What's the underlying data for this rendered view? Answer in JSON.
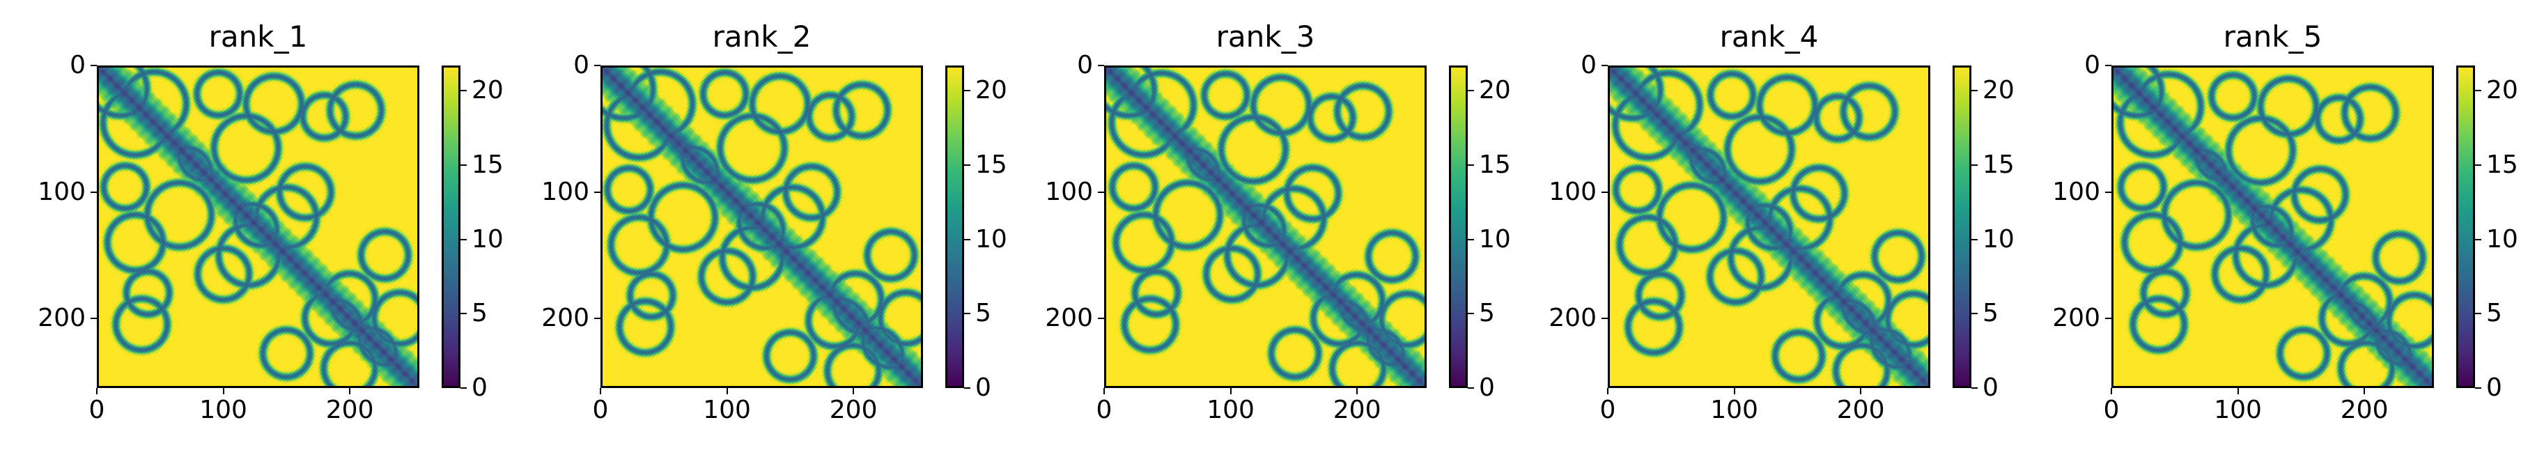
{
  "chart_data": [
    {
      "type": "heatmap",
      "title": "rank_1",
      "xticks": [
        0,
        100,
        200
      ],
      "yticks": [
        0,
        100,
        200
      ],
      "xlim": [
        0,
        255
      ],
      "ylim": [
        0,
        255
      ],
      "colorbar": {
        "ticks": [
          0,
          5,
          10,
          15,
          20
        ],
        "range": [
          0,
          21.7
        ]
      },
      "colormap": "viridis",
      "variant": 0
    },
    {
      "type": "heatmap",
      "title": "rank_2",
      "xticks": [
        0,
        100,
        200
      ],
      "yticks": [
        0,
        100,
        200
      ],
      "xlim": [
        0,
        255
      ],
      "ylim": [
        0,
        255
      ],
      "colorbar": {
        "ticks": [
          0,
          5,
          10,
          15,
          20
        ],
        "range": [
          0,
          21.7
        ]
      },
      "colormap": "viridis",
      "variant": 1
    },
    {
      "type": "heatmap",
      "title": "rank_3",
      "xticks": [
        0,
        100,
        200
      ],
      "yticks": [
        0,
        100,
        200
      ],
      "xlim": [
        0,
        255
      ],
      "ylim": [
        0,
        255
      ],
      "colorbar": {
        "ticks": [
          0,
          5,
          10,
          15,
          20
        ],
        "range": [
          0,
          21.7
        ]
      },
      "colormap": "viridis",
      "variant": 2
    },
    {
      "type": "heatmap",
      "title": "rank_4",
      "xticks": [
        0,
        100,
        200
      ],
      "yticks": [
        0,
        100,
        200
      ],
      "xlim": [
        0,
        255
      ],
      "ylim": [
        0,
        255
      ],
      "colorbar": {
        "ticks": [
          0,
          5,
          10,
          15,
          20
        ],
        "range": [
          0,
          21.7
        ]
      },
      "colormap": "viridis",
      "variant": 3
    },
    {
      "type": "heatmap",
      "title": "rank_5",
      "xticks": [
        0,
        100,
        200
      ],
      "yticks": [
        0,
        100,
        200
      ],
      "xlim": [
        0,
        255
      ],
      "ylim": [
        0,
        255
      ],
      "colorbar": {
        "ticks": [
          0,
          5,
          10,
          15,
          20
        ],
        "range": [
          0,
          21.7
        ]
      },
      "colormap": "viridis",
      "variant": 4
    }
  ]
}
